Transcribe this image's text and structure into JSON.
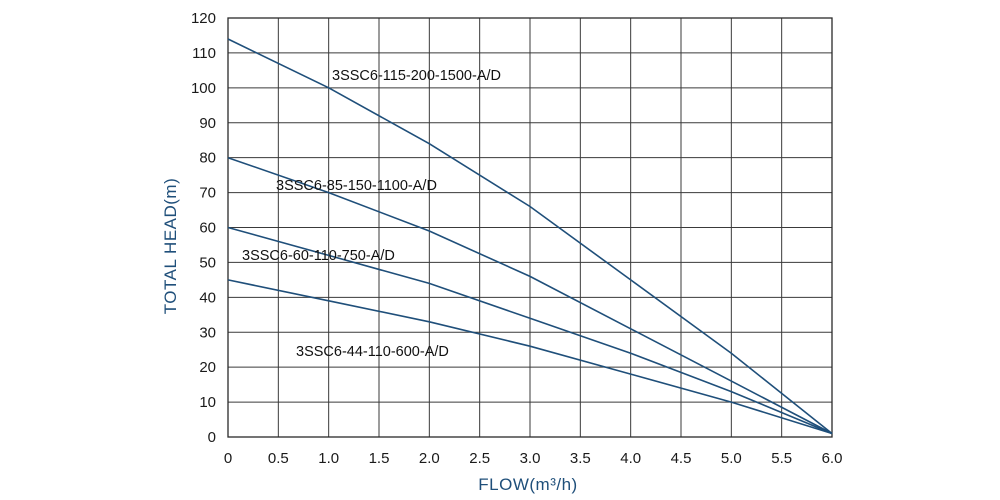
{
  "chart_data": {
    "type": "line",
    "title": "",
    "xlabel": "FLOW(m³/h)",
    "ylabel": "TOTAL HEAD(m)",
    "xlim": [
      0,
      6.0
    ],
    "ylim": [
      0,
      120
    ],
    "x_ticks": [
      "0",
      "0.5",
      "1.0",
      "1.5",
      "2.0",
      "2.5",
      "3.0",
      "3.5",
      "4.0",
      "4.5",
      "5.0",
      "5.5",
      "6.0"
    ],
    "y_ticks": [
      "0",
      "10",
      "20",
      "30",
      "40",
      "50",
      "60",
      "70",
      "80",
      "90",
      "100",
      "110",
      "120"
    ],
    "grid": true,
    "line_color": "#1f4f7a",
    "series": [
      {
        "name": "3SSC6-115-200-1500-A/D",
        "x": [
          0,
          1.0,
          2.0,
          3.0,
          4.0,
          5.0,
          6.0
        ],
        "y": [
          114,
          100,
          84,
          66,
          45,
          24,
          1
        ]
      },
      {
        "name": "3SSC6-85-150-1100-A/D",
        "x": [
          0,
          1.0,
          2.0,
          3.0,
          4.0,
          5.0,
          6.0
        ],
        "y": [
          80,
          70,
          59,
          46,
          31,
          16,
          1
        ]
      },
      {
        "name": "3SSC6-60-110-750-A/D",
        "x": [
          0,
          1.0,
          2.0,
          3.0,
          4.0,
          5.0,
          6.0
        ],
        "y": [
          60,
          52,
          44,
          34,
          24,
          13,
          1
        ]
      },
      {
        "name": "3SSC6-44-110-600-A/D",
        "x": [
          0,
          1.0,
          2.0,
          3.0,
          4.0,
          5.0,
          6.0
        ],
        "y": [
          45,
          39,
          33,
          26,
          18,
          10,
          1
        ]
      }
    ]
  }
}
